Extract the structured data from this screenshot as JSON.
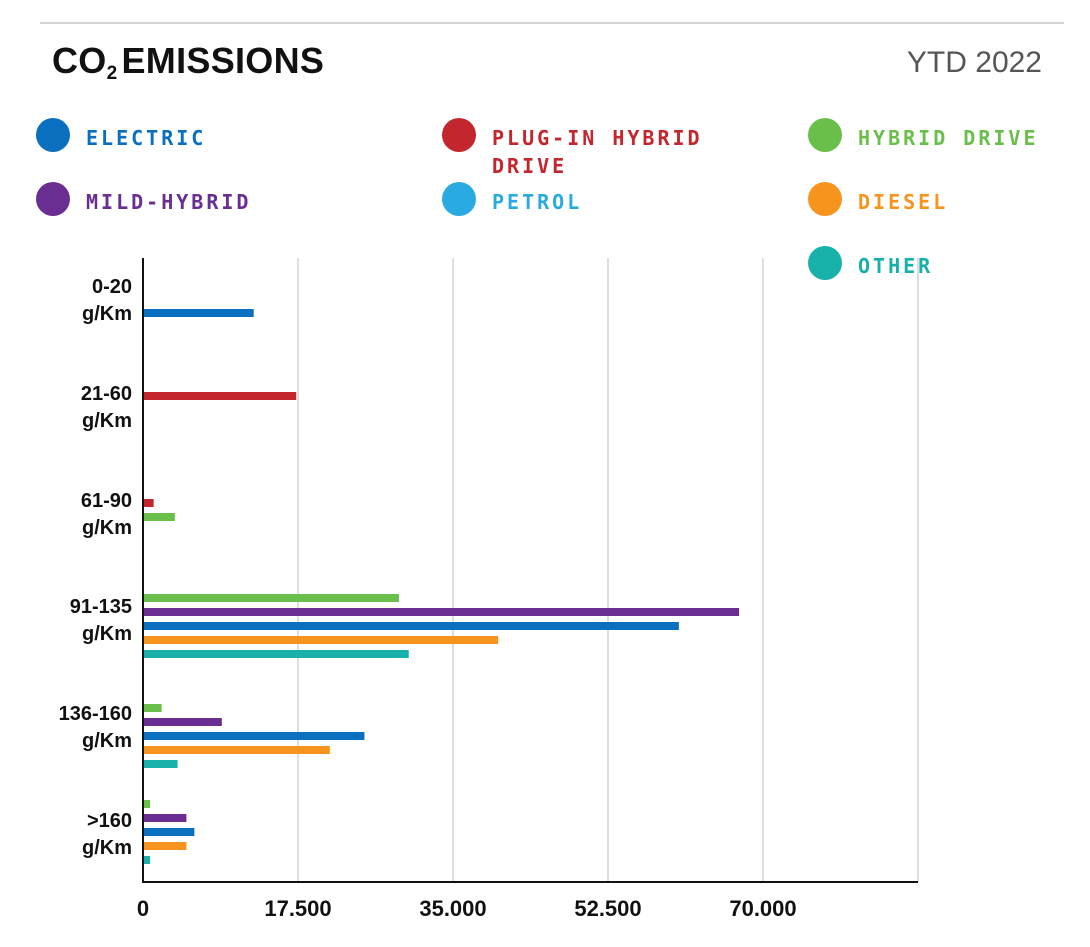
{
  "title": {
    "main": "CO",
    "sub": "2",
    "rest": "EMISSIONS"
  },
  "period": "YTD 2022",
  "chart_data": {
    "type": "bar",
    "orientation": "horizontal",
    "categories": [
      ">160 g/Km",
      "136-160 g/Km",
      "91-135 g/Km",
      "61-90 g/Km",
      "21-60 g/Km",
      "0-20 g/Km"
    ],
    "category_labels": [
      {
        "line1": "0-20",
        "line2": "g/Km"
      },
      {
        "line1": "21-60",
        "line2": "g/Km"
      },
      {
        "line1": "61-90",
        "line2": "g/Km"
      },
      {
        "line1": "91-135",
        "line2": "g/Km"
      },
      {
        "line1": "136-160",
        "line2": "g/Km"
      },
      {
        "line1": ">160",
        "line2": "g/Km"
      }
    ],
    "series": [
      {
        "name": "ELECTRIC",
        "color": "#0a6fbe",
        "values": {
          "0-20": 12500,
          "91-135": 60500,
          "136-160": 25000,
          ">160": 5800
        }
      },
      {
        "name": "PLUG-IN HYBRID DRIVE",
        "color": "#c4262e",
        "values": {
          "21-60": 17300,
          "61-90": 1200
        }
      },
      {
        "name": "HYBRID DRIVE",
        "color": "#6abf4b",
        "values": {
          "61-90": 3600,
          "91-135": 28900,
          "136-160": 2100,
          ">160": 800
        }
      },
      {
        "name": "MILD-HYBRID",
        "color": "#6a2d91",
        "values": {
          "91-135": 67300,
          "136-160": 8900,
          ">160": 4900
        }
      },
      {
        "name": "PETROL",
        "color": "#29abe2",
        "values": {}
      },
      {
        "name": "DIESEL",
        "color": "#f7941d",
        "values": {
          "91-135": 40100,
          "136-160": 21100,
          ">160": 4900
        }
      },
      {
        "name": "OTHER",
        "color": "#17b1aa",
        "values": {
          "91-135": 30000,
          "136-160": 3900,
          ">160": 800
        }
      }
    ],
    "xlim": [
      0,
      87500
    ],
    "xticks": [
      0,
      17500,
      35000,
      52500,
      70000
    ],
    "xtick_labels": [
      "0",
      "17.500",
      "35.000",
      "52.500",
      "70.000"
    ],
    "grid": true,
    "legend_position": "top"
  }
}
